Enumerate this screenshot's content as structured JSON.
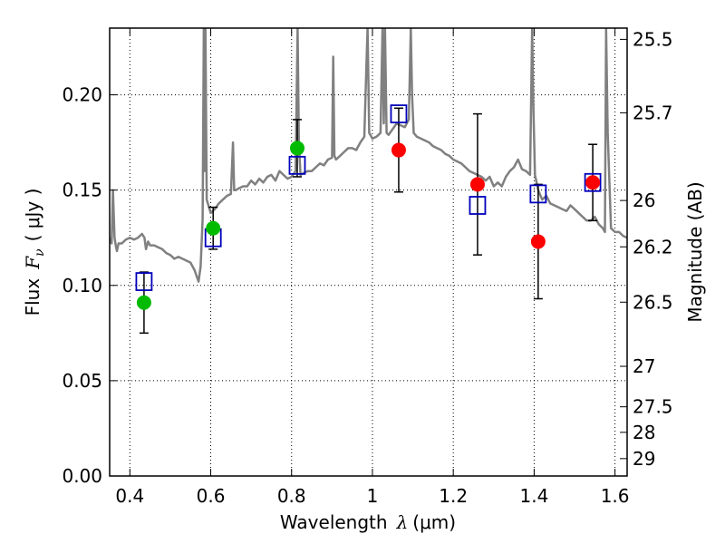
{
  "chart_data": {
    "type": "scatter",
    "title": "",
    "xlabel": {
      "prefix": "Wavelength",
      "symbol": "λ",
      "unit": "(μm)"
    },
    "ylabel": {
      "prefix": "Flux",
      "symbol": "F",
      "subscript": "ν",
      "unit": "( μJy )"
    },
    "y2label": "Magnitude (AB)",
    "xlim": [
      0.35,
      1.63
    ],
    "ylim": [
      0.0,
      0.235
    ],
    "grid": true,
    "x_ticks": [
      0.4,
      0.6,
      0.8,
      1.0,
      1.2,
      1.4,
      1.6
    ],
    "x_tick_labels": [
      "0.4",
      "0.6",
      "0.8",
      "1",
      "1.2",
      "1.4",
      "1.6"
    ],
    "y_ticks": [
      0.0,
      0.05,
      0.1,
      0.15,
      0.2
    ],
    "y_tick_labels": [
      "0.00",
      "0.05",
      "0.10",
      "0.15",
      "0.20"
    ],
    "y2_ticks": [
      {
        "label": "25.5",
        "mag": 25.5
      },
      {
        "label": "25.7",
        "mag": 25.7
      },
      {
        "label": "26",
        "mag": 26.0
      },
      {
        "label": "26.2",
        "mag": 26.2
      },
      {
        "label": "26.5",
        "mag": 26.5
      },
      {
        "label": "27",
        "mag": 27.0
      },
      {
        "label": "27.5",
        "mag": 27.5
      },
      {
        "label": "28",
        "mag": 28.0
      },
      {
        "label": "29",
        "mag": 29.0
      }
    ],
    "colors": {
      "model": "#808080",
      "green": "#00bb00",
      "red": "#ff0000",
      "square": "#0000bb",
      "errorbar": "#000000"
    },
    "series": [
      {
        "name": "observed_with_errors",
        "marker": "circle",
        "points": [
          {
            "x": 0.435,
            "y": 0.091,
            "err": 0.016,
            "color": "green"
          },
          {
            "x": 0.606,
            "y": 0.13,
            "err": 0.011,
            "color": "green"
          },
          {
            "x": 0.814,
            "y": 0.172,
            "err": 0.015,
            "color": "green"
          },
          {
            "x": 1.065,
            "y": 0.171,
            "err": 0.022,
            "color": "red"
          },
          {
            "x": 1.26,
            "y": 0.153,
            "err": 0.037,
            "color": "red"
          },
          {
            "x": 1.41,
            "y": 0.123,
            "err": 0.03,
            "color": "red"
          },
          {
            "x": 1.545,
            "y": 0.154,
            "err": 0.02,
            "color": "red"
          }
        ]
      },
      {
        "name": "model_photometry",
        "marker": "square",
        "points": [
          {
            "x": 0.435,
            "y": 0.102
          },
          {
            "x": 0.606,
            "y": 0.125
          },
          {
            "x": 0.814,
            "y": 0.163
          },
          {
            "x": 1.065,
            "y": 0.19
          },
          {
            "x": 1.26,
            "y": 0.142
          },
          {
            "x": 1.41,
            "y": 0.148
          },
          {
            "x": 1.545,
            "y": 0.154
          }
        ]
      },
      {
        "name": "model_spectrum",
        "marker": "line",
        "x": [
          0.35,
          0.355,
          0.358,
          0.362,
          0.365,
          0.368,
          0.372,
          0.38,
          0.39,
          0.4,
          0.41,
          0.42,
          0.43,
          0.436,
          0.44,
          0.445,
          0.45,
          0.46,
          0.47,
          0.48,
          0.49,
          0.5,
          0.51,
          0.52,
          0.53,
          0.54,
          0.55,
          0.56,
          0.57,
          0.575,
          0.58,
          0.583,
          0.585,
          0.587,
          0.59,
          0.6,
          0.61,
          0.62,
          0.63,
          0.64,
          0.65,
          0.655,
          0.658,
          0.662,
          0.67,
          0.68,
          0.69,
          0.7,
          0.71,
          0.72,
          0.73,
          0.74,
          0.75,
          0.76,
          0.77,
          0.78,
          0.79,
          0.8,
          0.81,
          0.815,
          0.818,
          0.822,
          0.83,
          0.84,
          0.85,
          0.86,
          0.87,
          0.88,
          0.89,
          0.9,
          0.903,
          0.906,
          0.91,
          0.92,
          0.93,
          0.94,
          0.95,
          0.96,
          0.97,
          0.98,
          0.985,
          0.988,
          0.992,
          1.0,
          1.01,
          1.02,
          1.025,
          1.028,
          1.031,
          1.035,
          1.04,
          1.05,
          1.06,
          1.07,
          1.08,
          1.09,
          1.095,
          1.098,
          1.102,
          1.11,
          1.12,
          1.13,
          1.14,
          1.15,
          1.16,
          1.17,
          1.18,
          1.19,
          1.2,
          1.21,
          1.22,
          1.23,
          1.24,
          1.25,
          1.26,
          1.27,
          1.28,
          1.29,
          1.3,
          1.31,
          1.32,
          1.33,
          1.34,
          1.35,
          1.36,
          1.37,
          1.38,
          1.39,
          1.395,
          1.398,
          1.402,
          1.41,
          1.42,
          1.43,
          1.44,
          1.45,
          1.46,
          1.47,
          1.48,
          1.49,
          1.5,
          1.51,
          1.52,
          1.53,
          1.54,
          1.55,
          1.56,
          1.57,
          1.575,
          1.578,
          1.582,
          1.59,
          1.6,
          1.61,
          1.62,
          1.63
        ],
        "y": [
          0.125,
          0.122,
          0.15,
          0.125,
          0.121,
          0.118,
          0.122,
          0.122,
          0.124,
          0.125,
          0.124,
          0.125,
          0.127,
          0.125,
          0.119,
          0.123,
          0.121,
          0.121,
          0.12,
          0.119,
          0.117,
          0.116,
          0.114,
          0.115,
          0.114,
          0.113,
          0.112,
          0.108,
          0.102,
          0.11,
          0.135,
          0.235,
          0.16,
          0.235,
          0.145,
          0.138,
          0.14,
          0.143,
          0.145,
          0.147,
          0.148,
          0.175,
          0.15,
          0.15,
          0.151,
          0.152,
          0.152,
          0.155,
          0.153,
          0.156,
          0.154,
          0.157,
          0.158,
          0.155,
          0.16,
          0.158,
          0.156,
          0.157,
          0.16,
          0.235,
          0.175,
          0.158,
          0.159,
          0.16,
          0.16,
          0.162,
          0.164,
          0.163,
          0.166,
          0.167,
          0.22,
          0.168,
          0.166,
          0.168,
          0.17,
          0.172,
          0.172,
          0.171,
          0.175,
          0.178,
          0.215,
          0.235,
          0.18,
          0.177,
          0.178,
          0.18,
          0.235,
          0.185,
          0.235,
          0.18,
          0.179,
          0.182,
          0.185,
          0.184,
          0.183,
          0.187,
          0.235,
          0.2,
          0.18,
          0.178,
          0.177,
          0.176,
          0.175,
          0.173,
          0.172,
          0.171,
          0.169,
          0.168,
          0.166,
          0.165,
          0.164,
          0.162,
          0.16,
          0.159,
          0.158,
          0.157,
          0.155,
          0.157,
          0.152,
          0.154,
          0.152,
          0.157,
          0.16,
          0.162,
          0.166,
          0.161,
          0.16,
          0.158,
          0.235,
          0.195,
          0.158,
          0.15,
          0.145,
          0.147,
          0.143,
          0.142,
          0.141,
          0.14,
          0.139,
          0.142,
          0.14,
          0.138,
          0.136,
          0.134,
          0.134,
          0.136,
          0.132,
          0.13,
          0.128,
          0.235,
          0.18,
          0.13,
          0.128,
          0.128,
          0.126,
          0.125
        ]
      }
    ]
  }
}
